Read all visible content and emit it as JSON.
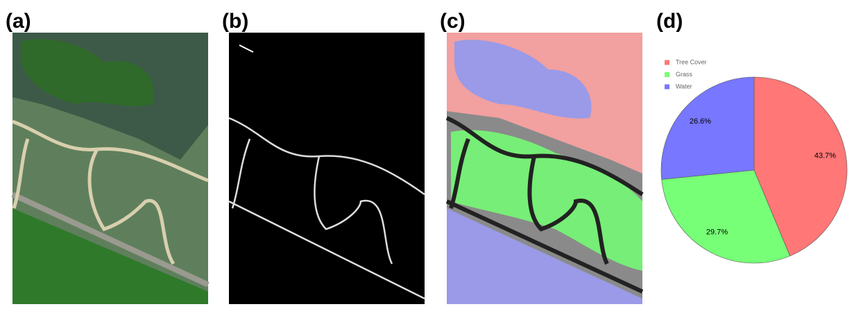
{
  "panels": [
    "(a)",
    "(b)",
    "(c)",
    "(d)"
  ],
  "chart_data": {
    "type": "pie",
    "categories": [
      "Tree Cover",
      "Grass",
      "Water"
    ],
    "values": [
      43.7,
      29.7,
      26.6
    ],
    "value_labels": [
      "43.7%",
      "29.7%",
      "26.6%"
    ],
    "colors": [
      "#ff7777",
      "#77ff77",
      "#7777ff"
    ],
    "legend": "upper left"
  }
}
